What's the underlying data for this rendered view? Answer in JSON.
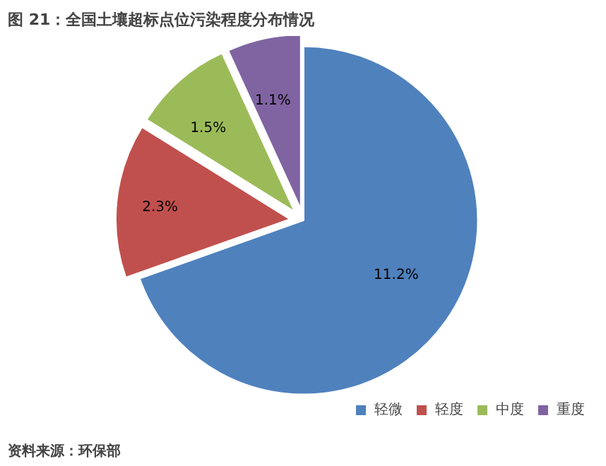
{
  "chart_data": {
    "type": "pie",
    "title": "图 21：全国土壤超标点位污染程度分布情况",
    "categories": [
      "轻微",
      "轻度",
      "中度",
      "重度"
    ],
    "values": [
      11.2,
      2.3,
      1.5,
      1.1
    ],
    "colors": [
      "#4f81bd",
      "#c0504d",
      "#9bbb59",
      "#8064a2"
    ],
    "value_labels": [
      "11.2%",
      "2.3%",
      "1.5%",
      "1.1%"
    ],
    "legend": "bottom right",
    "annotations": [
      "资料来源：环保部"
    ]
  }
}
